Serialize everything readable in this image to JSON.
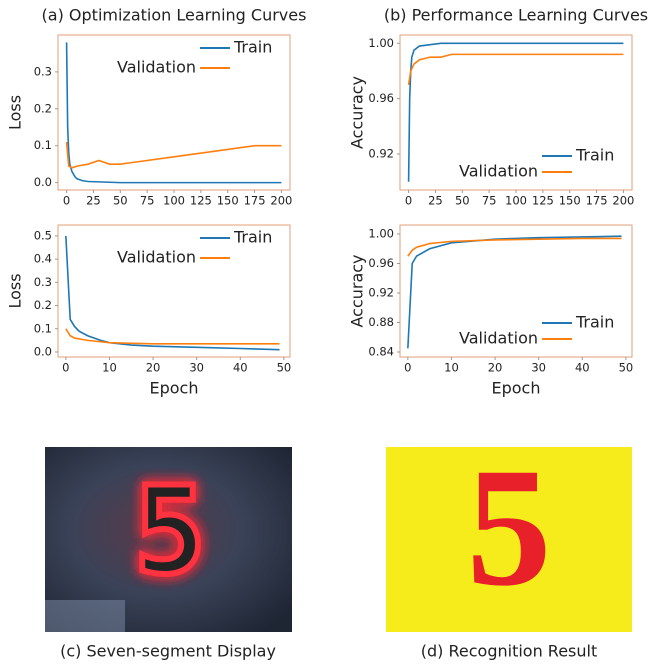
{
  "chart_data": [
    {
      "type": "line",
      "title": "(a) Optimization Learning Curves",
      "ylabel": "Loss",
      "legend": "upper right",
      "xlim": [
        -8,
        208
      ],
      "xticks": [
        0,
        25,
        50,
        75,
        100,
        125,
        150,
        175,
        200
      ],
      "ylim": [
        -0.02,
        0.4
      ],
      "yticks": [
        {
          "value": 0,
          "label": "0.0"
        },
        0.1,
        0.2,
        0.3
      ],
      "series": [
        {
          "name": "Train",
          "color": "#1f77b4",
          "x": [
            0,
            1,
            2,
            3,
            5,
            8,
            10,
            15,
            20,
            30,
            40,
            50,
            100,
            200
          ],
          "values": [
            0.38,
            0.15,
            0.08,
            0.05,
            0.03,
            0.015,
            0.01,
            0.005,
            0.003,
            0.002,
            0.001,
            0,
            0,
            0
          ]
        },
        {
          "name": "Validation",
          "color": "#ff7f0e",
          "x": [
            0,
            2,
            5,
            10,
            20,
            30,
            40,
            50,
            100,
            150,
            175,
            200
          ],
          "values": [
            0.11,
            0.045,
            0.04,
            0.045,
            0.05,
            0.06,
            0.05,
            0.05,
            0.07,
            0.09,
            0.1,
            0.1
          ]
        }
      ]
    },
    {
      "type": "line",
      "title": "(b) Performance Learning Curves",
      "ylabel": "Accuracy",
      "legend": "lower right",
      "xlim": [
        -8,
        208
      ],
      "xticks": [
        0,
        25,
        50,
        75,
        100,
        125,
        150,
        175,
        200
      ],
      "ylim": [
        0.894,
        1.006
      ],
      "yticks": [
        0.92,
        0.96,
        {
          "value": 1,
          "label": "1.00"
        }
      ],
      "series": [
        {
          "name": "Train",
          "color": "#1f77b4",
          "x": [
            0,
            1,
            2,
            3,
            5,
            10,
            20,
            30,
            40,
            200
          ],
          "values": [
            0.9,
            0.96,
            0.98,
            0.99,
            0.995,
            0.998,
            0.999,
            1,
            1,
            1
          ]
        },
        {
          "name": "Validation",
          "color": "#ff7f0e",
          "x": [
            0,
            1,
            2,
            5,
            10,
            20,
            30,
            40,
            50,
            100,
            200
          ],
          "values": [
            0.97,
            0.975,
            0.98,
            0.985,
            0.988,
            0.99,
            0.99,
            0.992,
            0.992,
            0.992,
            0.992
          ]
        }
      ]
    },
    {
      "type": "line",
      "ylabel": "Loss",
      "xlabel": "Epoch",
      "legend": "upper right",
      "xlim": [
        -1.8,
        51.4
      ],
      "xticks": [
        0,
        10,
        20,
        30,
        40,
        50
      ],
      "ylim": [
        -0.0216,
        0.547
      ],
      "yticks": [
        {
          "value": 0,
          "label": "0.0"
        },
        0.1,
        0.2,
        0.3,
        0.4,
        0.5
      ],
      "series": [
        {
          "name": "Train",
          "color": "#1f77b4",
          "x": [
            0,
            1,
            2,
            3,
            5,
            8,
            10,
            15,
            20,
            30,
            40,
            49
          ],
          "values": [
            0.5,
            0.14,
            0.11,
            0.09,
            0.07,
            0.05,
            0.04,
            0.03,
            0.025,
            0.02,
            0.015,
            0.01
          ]
        },
        {
          "name": "Validation",
          "color": "#ff7f0e",
          "x": [
            0,
            1,
            2,
            5,
            10,
            20,
            30,
            40,
            49
          ],
          "values": [
            0.1,
            0.07,
            0.06,
            0.05,
            0.04,
            0.035,
            0.035,
            0.035,
            0.035
          ]
        }
      ]
    },
    {
      "type": "line",
      "ylabel": "Accuracy",
      "xlabel": "Epoch",
      "legend": "lower right",
      "xlim": [
        -1.8,
        51.4
      ],
      "xticks": [
        0,
        10,
        20,
        30,
        40,
        50
      ],
      "ylim": [
        0.8332,
        1.0122
      ],
      "yticks": [
        0.84,
        0.88,
        0.92,
        0.96,
        {
          "value": 1,
          "label": "1.00"
        }
      ],
      "series": [
        {
          "name": "Train",
          "color": "#1f77b4",
          "x": [
            0,
            1,
            2,
            5,
            10,
            20,
            30,
            40,
            49
          ],
          "values": [
            0.845,
            0.96,
            0.97,
            0.98,
            0.988,
            0.993,
            0.995,
            0.996,
            0.997
          ]
        },
        {
          "name": "Validation",
          "color": "#ff7f0e",
          "x": [
            0,
            1,
            2,
            5,
            10,
            20,
            30,
            40,
            49
          ],
          "values": [
            0.97,
            0.978,
            0.982,
            0.987,
            0.99,
            0.992,
            0.993,
            0.994,
            0.994
          ]
        }
      ]
    }
  ],
  "images": [
    {
      "digit": "5",
      "caption": "(c) Seven-segment Display"
    },
    {
      "digit": "5",
      "caption": "(d) Recognition Result"
    }
  ]
}
